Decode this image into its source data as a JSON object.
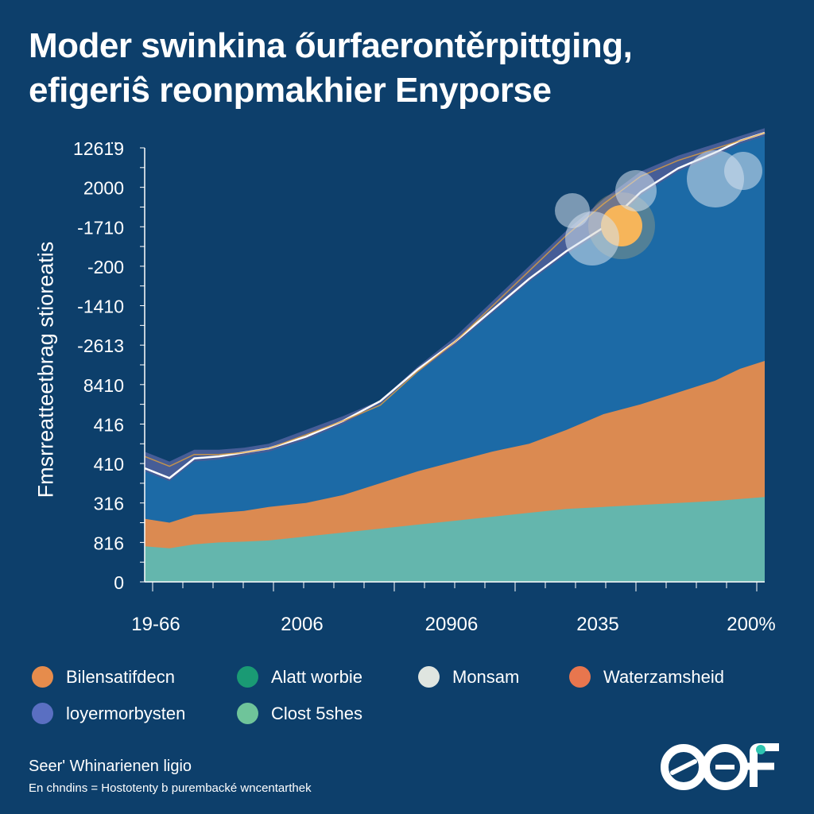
{
  "title": {
    "line1": "Moder swinkina őurfaerontěrpittging,",
    "line2": "efigeriŝ reonpmakhier Enyporse"
  },
  "colors": {
    "background": "#0d3f6b",
    "teal": "#5eb8b2",
    "orange": "#e68c4c",
    "blue": "#1a6aa6",
    "slate": "#4a5f9a"
  },
  "chart_data": {
    "type": "area",
    "ylabel": "Fmsrreatteetbrag stioreatis",
    "y_tick_labels": [
      "1261̈9",
      "2000",
      "-1710",
      "-200",
      "-1410",
      "-2613",
      "8410",
      "416",
      "410",
      "316",
      "816",
      "0"
    ],
    "x_tick_labels": [
      "19-66",
      "2006",
      "20906",
      "2035",
      "200%"
    ],
    "grid": false,
    "legend_position": "bottom",
    "note": "Stacked area series; y values in tick-index units (0 = bottom tick \"0\", 11 = top tick)",
    "x": [
      0,
      0.04,
      0.08,
      0.12,
      0.16,
      0.2,
      0.26,
      0.32,
      0.38,
      0.44,
      0.5,
      0.56,
      0.62,
      0.68,
      0.74,
      0.8,
      0.86,
      0.92,
      0.96,
      1.0
    ],
    "series": [
      {
        "legend_ref": "Clost 5shes",
        "color": "#5eb8b2",
        "values": [
          0.9,
          0.85,
          0.95,
          1.0,
          1.02,
          1.05,
          1.15,
          1.25,
          1.35,
          1.45,
          1.55,
          1.65,
          1.75,
          1.85,
          1.9,
          1.95,
          2.0,
          2.05,
          2.1,
          2.15
        ]
      },
      {
        "legend_ref": "Waterzamsheid",
        "color": "#e68c4c",
        "values": [
          1.6,
          1.5,
          1.7,
          1.75,
          1.8,
          1.9,
          2.0,
          2.2,
          2.5,
          2.8,
          3.05,
          3.3,
          3.5,
          3.85,
          4.25,
          4.5,
          4.8,
          5.1,
          5.4,
          5.6
        ]
      },
      {
        "legend_ref": "Alatt worbie",
        "color": "#1a6aa6",
        "values": [
          2.8,
          2.55,
          3.05,
          3.1,
          3.2,
          3.3,
          3.6,
          4.0,
          4.5,
          5.3,
          6.0,
          6.8,
          7.6,
          8.3,
          8.9,
          9.8,
          10.4,
          10.8,
          11.1,
          11.3
        ]
      },
      {
        "legend_ref": "loyermorbysten",
        "color": "#4a5f9a",
        "values": [
          3.3,
          3.05,
          3.35,
          3.35,
          3.4,
          3.5,
          3.85,
          4.2,
          4.6,
          5.45,
          6.2,
          7.1,
          8.0,
          8.9,
          9.7,
          10.4,
          10.8,
          11.1,
          11.3,
          11.5
        ]
      }
    ]
  },
  "legend": {
    "items": [
      {
        "label": "Bilensatifdecn",
        "color": "#e68c4c"
      },
      {
        "label": "Alatt worbie",
        "color": "#1a9a74"
      },
      {
        "label": "Monsam",
        "color": "#dfe5e0"
      },
      {
        "label": "Waterzamsheid",
        "color": "#e8764e"
      },
      {
        "label": "loyermorbysten",
        "color": "#5a6fc2"
      },
      {
        "label": "Clost 5shes",
        "color": "#6fc49a"
      }
    ]
  },
  "source": {
    "line1": "Seer' Whinarienen ligio",
    "line2": "En chndins  =  Hostotenty  b purembacké wncentarthek"
  },
  "logo": {
    "text": "OOF",
    "accent": "#2ec4b0"
  }
}
